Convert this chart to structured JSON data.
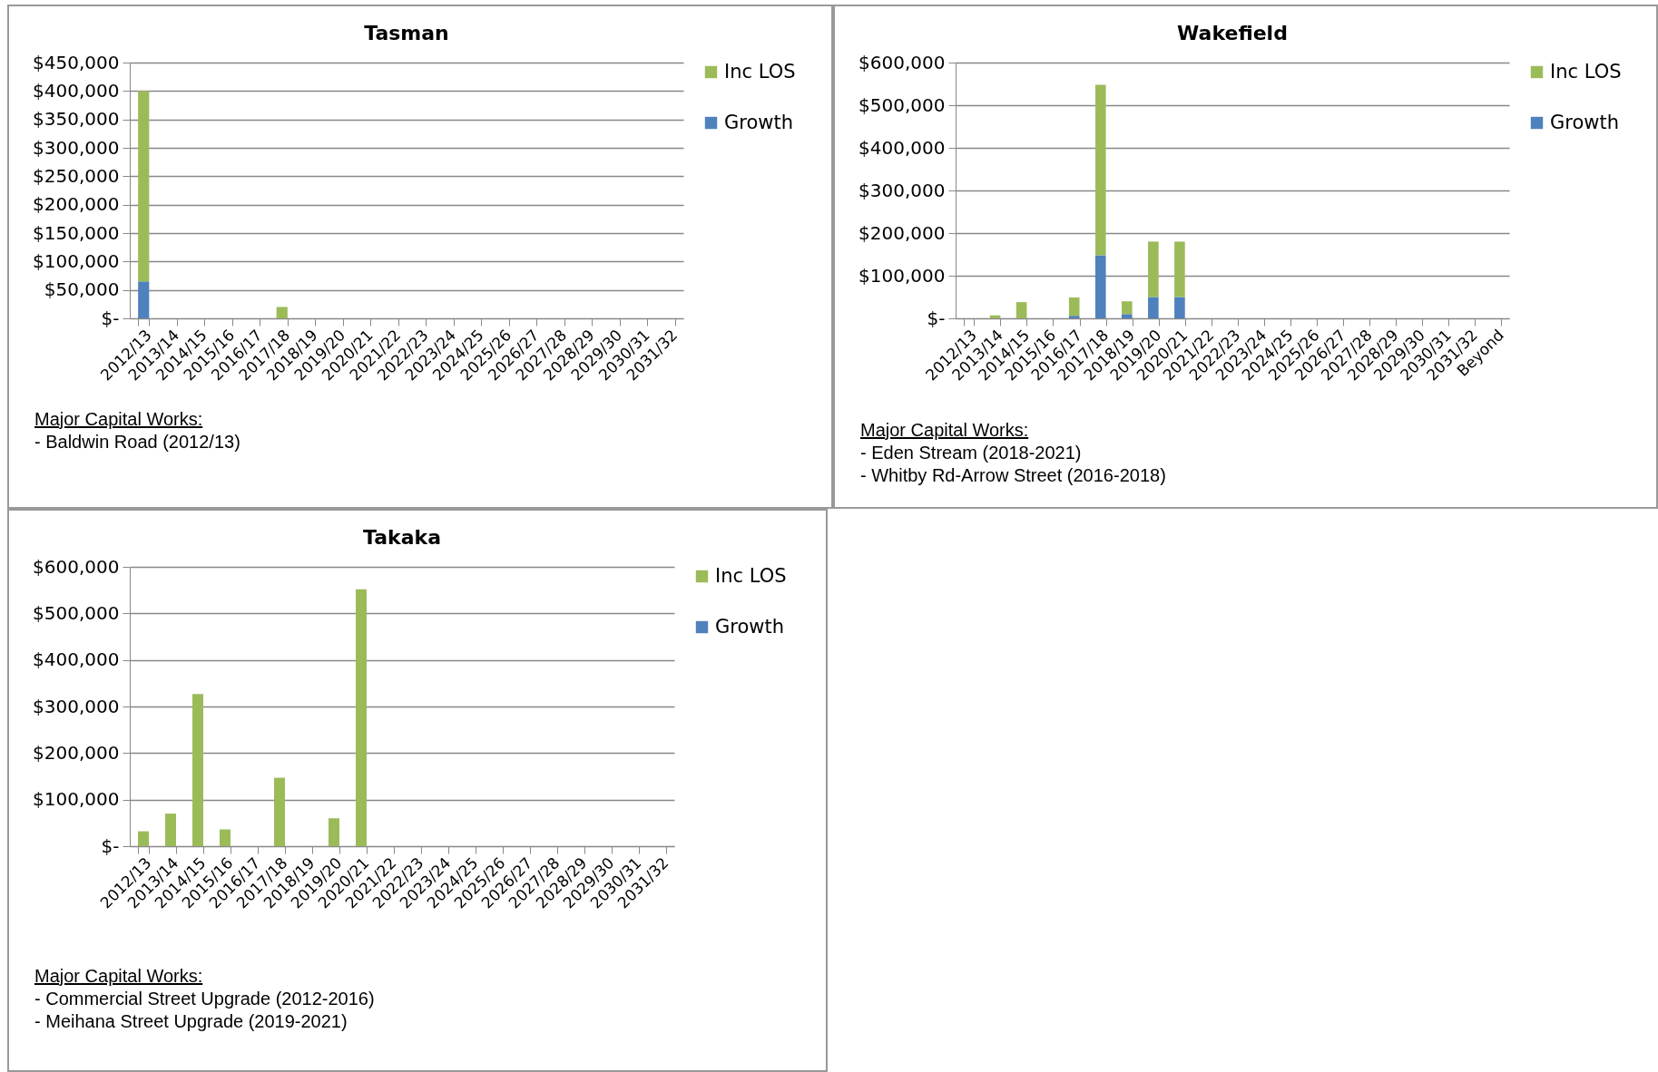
{
  "chart_data": [
    {
      "type": "bar",
      "title": "Tasman",
      "stacked": true,
      "grid": "y",
      "legend": "right",
      "categories": [
        "2012/13",
        "2013/14",
        "2014/15",
        "2015/16",
        "2016/17",
        "2017/18",
        "2018/19",
        "2019/20",
        "2020/21",
        "2021/22",
        "2022/23",
        "2023/24",
        "2024/25",
        "2025/26",
        "2026/27",
        "2027/28",
        "2028/29",
        "2029/30",
        "2030/31",
        "2031/32"
      ],
      "ylim": [
        0,
        450000
      ],
      "yticks": [
        {
          "value": 0,
          "label": "$-"
        },
        {
          "value": 50000,
          "label": "$50,000"
        },
        {
          "value": 100000,
          "label": "$100,000"
        },
        {
          "value": 150000,
          "label": "$150,000"
        },
        {
          "value": 200000,
          "label": "$200,000"
        },
        {
          "value": 250000,
          "label": "$250,000"
        },
        {
          "value": 300000,
          "label": "$300,000"
        },
        {
          "value": 350000,
          "label": "$350,000"
        },
        {
          "value": 400000,
          "label": "$400,000"
        },
        {
          "value": 450000,
          "label": "$450,000"
        }
      ],
      "series": [
        {
          "name": "Growth",
          "color": "#4f81bd",
          "values": [
            65000,
            null,
            null,
            null,
            null,
            null,
            null,
            null,
            null,
            null,
            null,
            null,
            null,
            null,
            null,
            null,
            null,
            null,
            null,
            null
          ]
        },
        {
          "name": "Inc LOS",
          "color": "#9bbb59",
          "values": [
            335000,
            null,
            null,
            null,
            null,
            20000,
            null,
            null,
            null,
            null,
            null,
            null,
            null,
            null,
            null,
            null,
            null,
            null,
            null,
            null
          ]
        }
      ],
      "annotations": [
        "Major Capital Works:",
        "- Baldwin Road (2012/13)"
      ]
    },
    {
      "type": "bar",
      "title": "Wakefield",
      "stacked": true,
      "grid": "y",
      "legend": "right",
      "categories": [
        "2012/13",
        "2013/14",
        "2014/15",
        "2015/16",
        "2016/17",
        "2017/18",
        "2018/19",
        "2019/20",
        "2020/21",
        "2021/22",
        "2022/23",
        "2023/24",
        "2024/25",
        "2025/26",
        "2026/27",
        "2027/28",
        "2028/29",
        "2029/30",
        "2030/31",
        "2031/32",
        "Beyond"
      ],
      "ylim": [
        0,
        600000
      ],
      "yticks": [
        {
          "value": 0,
          "label": "$-"
        },
        {
          "value": 100000,
          "label": "$100,000"
        },
        {
          "value": 200000,
          "label": "$200,000"
        },
        {
          "value": 300000,
          "label": "$300,000"
        },
        {
          "value": 400000,
          "label": "$400,000"
        },
        {
          "value": 500000,
          "label": "$500,000"
        },
        {
          "value": 600000,
          "label": "$600,000"
        }
      ],
      "series": [
        {
          "name": "Growth",
          "color": "#4f81bd",
          "values": [
            null,
            null,
            null,
            null,
            6000,
            148000,
            10000,
            50000,
            50000,
            null,
            null,
            null,
            null,
            null,
            null,
            null,
            null,
            null,
            null,
            null,
            null
          ]
        },
        {
          "name": "Inc LOS",
          "color": "#9bbb59",
          "values": [
            null,
            7000,
            38000,
            null,
            43000,
            400000,
            30000,
            130000,
            130000,
            null,
            null,
            null,
            null,
            null,
            null,
            null,
            null,
            null,
            null,
            null,
            null
          ]
        }
      ],
      "annotations": [
        "Major Capital Works:",
        "- Eden Stream (2018-2021)",
        "- Whitby Rd-Arrow Street (2016-2018)"
      ]
    },
    {
      "type": "bar",
      "title": "Takaka",
      "stacked": true,
      "grid": "y",
      "legend": "right",
      "categories": [
        "2012/13",
        "2013/14",
        "2014/15",
        "2015/16",
        "2016/17",
        "2017/18",
        "2018/19",
        "2019/20",
        "2020/21",
        "2021/22",
        "2022/23",
        "2023/24",
        "2024/25",
        "2025/26",
        "2026/27",
        "2027/28",
        "2028/29",
        "2029/30",
        "2030/31",
        "2031/32"
      ],
      "ylim": [
        0,
        600000
      ],
      "yticks": [
        {
          "value": 0,
          "label": "$-"
        },
        {
          "value": 100000,
          "label": "$100,000"
        },
        {
          "value": 200000,
          "label": "$200,000"
        },
        {
          "value": 300000,
          "label": "$300,000"
        },
        {
          "value": 400000,
          "label": "$400,000"
        },
        {
          "value": 500000,
          "label": "$500,000"
        },
        {
          "value": 600000,
          "label": "$600,000"
        }
      ],
      "series": [
        {
          "name": "Growth",
          "color": "#4f81bd",
          "values": [
            null,
            null,
            null,
            null,
            null,
            null,
            null,
            null,
            null,
            null,
            null,
            null,
            null,
            null,
            null,
            null,
            null,
            null,
            null,
            null
          ]
        },
        {
          "name": "Inc LOS",
          "color": "#9bbb59",
          "values": [
            32000,
            70000,
            327000,
            36000,
            null,
            147000,
            null,
            60000,
            552000,
            null,
            null,
            null,
            null,
            null,
            null,
            null,
            null,
            null,
            null,
            null
          ]
        }
      ],
      "annotations": [
        "Major Capital Works:",
        "- Commercial Street Upgrade (2012-2016)",
        "- Meihana Street Upgrade (2019-2021)"
      ]
    }
  ]
}
